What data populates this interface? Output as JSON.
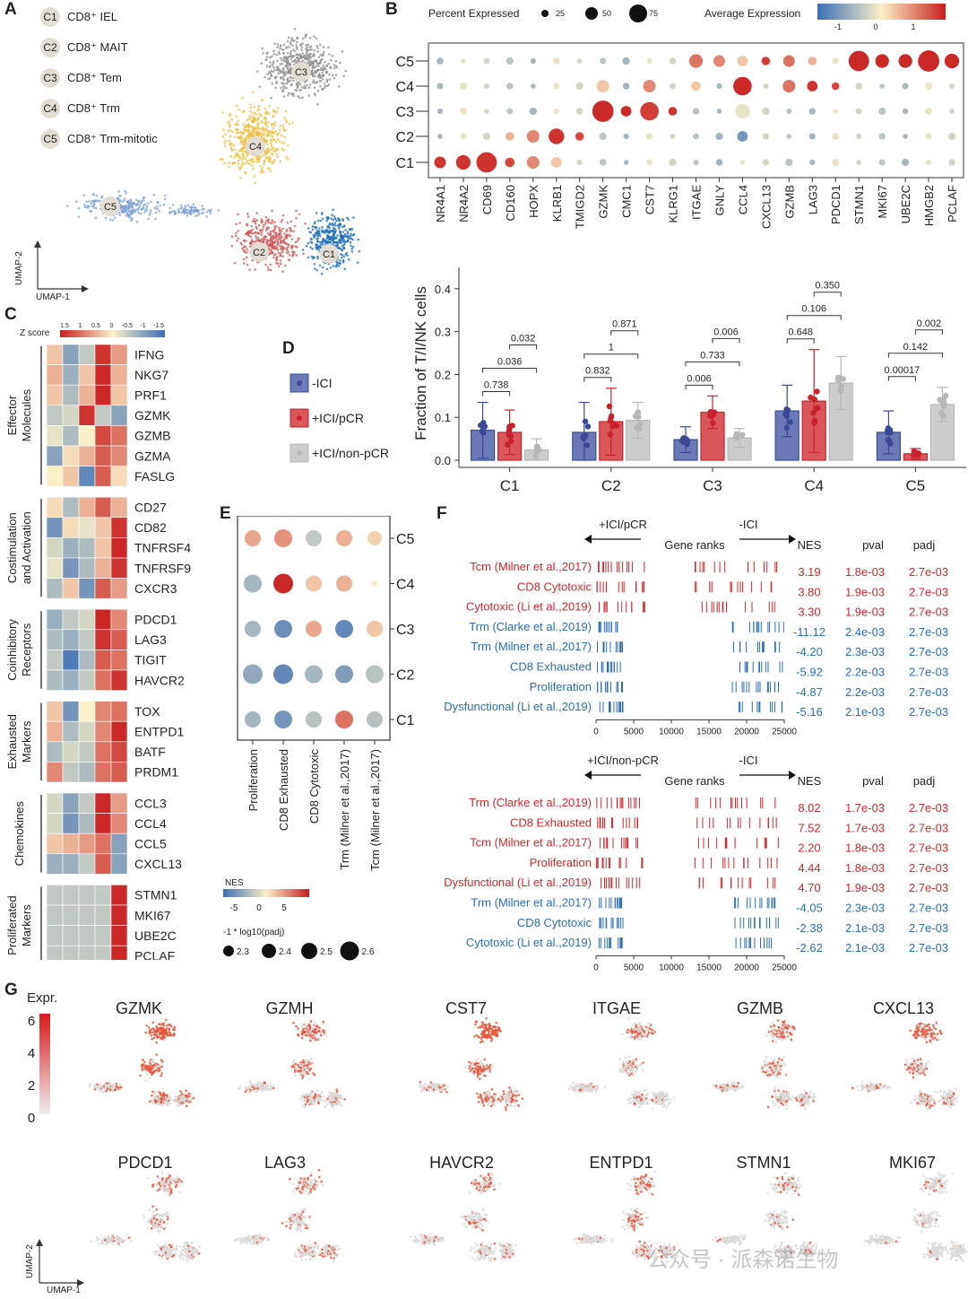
{
  "panels": {
    "A": "A",
    "B": "B",
    "C": "C",
    "D": "D",
    "E": "E",
    "F": "F",
    "G": "G"
  },
  "colors": {
    "ici_neg": "#3b4a96",
    "ici_pcr": "#c8232c",
    "ici_nonpcr": "#b7b7b7",
    "c1": "#1f6eb4",
    "c2": "#cc5a5a",
    "c3": "#8d8d8d",
    "c4": "#f0bd3e",
    "c5": "#7ea2d6"
  },
  "umap": {
    "clusters": [
      {
        "id": "C1",
        "name": "CD8⁺ IEL"
      },
      {
        "id": "C2",
        "name": "CD8⁺ MAIT"
      },
      {
        "id": "C3",
        "name": "CD8⁺ Tem"
      },
      {
        "id": "C4",
        "name": "CD8⁺ Trm"
      },
      {
        "id": "C5",
        "name": "CD8⁺ Trm-mitotic"
      }
    ],
    "axis_x": "UMAP-1",
    "axis_y": "UMAP-2"
  },
  "dotplot": {
    "legend_size_title": "Percent Expressed",
    "legend_size_ticks": [
      "25",
      "50",
      "75"
    ],
    "legend_color_title": "Average Expression",
    "legend_color_ticks": [
      "-1",
      "0",
      "1"
    ],
    "rows": [
      "C5",
      "C4",
      "C3",
      "C2",
      "C1"
    ],
    "genes": [
      "NR4A1",
      "NR4A2",
      "CD69",
      "CD160",
      "HOPX",
      "KLRB1",
      "TMIGD2",
      "GZMK",
      "CMC1",
      "CST7",
      "KLRG1",
      "ITGAE",
      "GNLY",
      "CCL4",
      "CXCL13",
      "GZMB",
      "LAG3",
      "PDCD1",
      "STMN1",
      "MKI67",
      "UBE2C",
      "HMGB2",
      "PCLAF"
    ]
  },
  "heatmap": {
    "zscore_title": "Z score",
    "zscore_ticks": [
      "1.5",
      "1",
      "0.5",
      "0",
      "-0.5",
      "-1",
      "-1.5"
    ],
    "columns": [
      "C1",
      "C2",
      "C3",
      "C4",
      "C5"
    ],
    "groups": [
      {
        "name": "Effector\nMolecules",
        "genes": [
          "IFNG",
          "NKG7",
          "PRF1",
          "GZMK",
          "GZMB",
          "GZMA",
          "FASLG"
        ]
      },
      {
        "name": "Costimulation\nand Activation",
        "genes": [
          "CD27",
          "CD82",
          "TNFRSF4",
          "TNFRSF9",
          "CXCR3"
        ]
      },
      {
        "name": "Coinhibitory\nReceptors",
        "genes": [
          "PDCD1",
          "LAG3",
          "TIGIT",
          "HAVCR2"
        ]
      },
      {
        "name": "Exhausted\nMarkers",
        "genes": [
          "TOX",
          "ENTPD1",
          "BATF",
          "PRDM1"
        ]
      },
      {
        "name": "Chemokines",
        "genes": [
          "CCL3",
          "CCL4",
          "CCL5",
          "CXCL13"
        ]
      },
      {
        "name": "Proliferated\nMarkers",
        "genes": [
          "STMN1",
          "MKI67",
          "UBE2C",
          "PCLAF"
        ]
      }
    ]
  },
  "legend_d": {
    "items": [
      "-ICI",
      "+ICI/pCR",
      "+ICI/non-pCR"
    ]
  },
  "chart_data": [
    {
      "type": "bar",
      "ylabel": "Fraction of T/I/NK cells",
      "ylim": [
        0,
        0.45
      ],
      "yticks": [
        "0.0",
        "0.1",
        "0.2",
        "0.3",
        "0.4"
      ],
      "categories": [
        "C1",
        "C2",
        "C3",
        "C4",
        "C5"
      ],
      "series": [
        {
          "name": "-ICI",
          "values": [
            0.07,
            0.065,
            0.048,
            0.115,
            0.065
          ],
          "err": [
            0.065,
            0.07,
            0.03,
            0.06,
            0.05
          ]
        },
        {
          "name": "+ICI/pCR",
          "values": [
            0.065,
            0.09,
            0.112,
            0.138,
            0.015
          ],
          "err": [
            0.052,
            0.078,
            0.038,
            0.12,
            0.012
          ]
        },
        {
          "name": "+ICI/non-pCR",
          "values": [
            0.024,
            0.093,
            0.052,
            0.18,
            0.13
          ],
          "err": [
            0.026,
            0.042,
            0.022,
            0.062,
            0.04
          ]
        }
      ],
      "pvalues": [
        {
          "cluster": "C1",
          "pairs": [
            [
              "1-2",
              "0.738"
            ],
            [
              "1-3",
              "0.036"
            ],
            [
              "2-3",
              "0.032"
            ]
          ]
        },
        {
          "cluster": "C2",
          "pairs": [
            [
              "1-2",
              "0.832"
            ],
            [
              "1-3",
              "1"
            ],
            [
              "2-3",
              "0.871"
            ]
          ]
        },
        {
          "cluster": "C3",
          "pairs": [
            [
              "1-2",
              "0.006"
            ],
            [
              "1-3",
              "0.733"
            ],
            [
              "2-3",
              "0.006"
            ]
          ]
        },
        {
          "cluster": "C4",
          "pairs": [
            [
              "1-2",
              "0.648"
            ],
            [
              "1-3",
              "0.106"
            ],
            [
              "2-3",
              "0.350"
            ]
          ]
        },
        {
          "cluster": "C5",
          "pairs": [
            [
              "1-2",
              "0.00017"
            ],
            [
              "1-3",
              "0.142"
            ],
            [
              "2-3",
              "0.002"
            ]
          ]
        }
      ]
    }
  ],
  "panel_e": {
    "rows": [
      "C5",
      "C4",
      "C3",
      "C2",
      "C1"
    ],
    "columns": [
      "Proliferation",
      "CD8 Exhausted",
      "CD8 Cytotoxic",
      "Trm (Milner et al.,2017)",
      "Tcm (Milner et al.,2017)"
    ],
    "nes_title": "NES",
    "nes_ticks": [
      "-5",
      "0",
      "5"
    ],
    "size_title": "-1 * log10(padj)",
    "size_ticks": [
      "2.3",
      "2.4",
      "2.5",
      "2.6"
    ]
  },
  "gsea": [
    {
      "left": "+ICI/pCR",
      "right": "-ICI",
      "axis_title": "Gene ranks",
      "headers": [
        "NES",
        "pval",
        "padj"
      ],
      "xticks": [
        "0",
        "5000",
        "10000",
        "15000",
        "20000",
        "25000"
      ],
      "rows": [
        {
          "name": "Tcm (Milner et al.,2017)",
          "nes": "3.19",
          "pval": "1.8e-03",
          "padj": "2.7e-03",
          "up": true
        },
        {
          "name": "CD8 Cytotoxic",
          "nes": "3.80",
          "pval": "1.9e-03",
          "padj": "2.7e-03",
          "up": true
        },
        {
          "name": "Cytotoxic (Li et al.,2019)",
          "nes": "3.30",
          "pval": "1.9e-03",
          "padj": "2.7e-03",
          "up": true
        },
        {
          "name": "Trm (Clarke et al.,2019)",
          "nes": "-11.12",
          "pval": "2.4e-03",
          "padj": "2.7e-03",
          "up": false
        },
        {
          "name": "Trm (Milner et al.,2017)",
          "nes": "-4.20",
          "pval": "2.3e-03",
          "padj": "2.7e-03",
          "up": false
        },
        {
          "name": "CD8 Exhausted",
          "nes": "-5.92",
          "pval": "2.2e-03",
          "padj": "2.7e-03",
          "up": false
        },
        {
          "name": "Proliferation",
          "nes": "-4.87",
          "pval": "2.2e-03",
          "padj": "2.7e-03",
          "up": false
        },
        {
          "name": "Dysfunctional (Li et al.,2019)",
          "nes": "-5.16",
          "pval": "2.1e-03",
          "padj": "2.7e-03",
          "up": false
        }
      ]
    },
    {
      "left": "+ICI/non-pCR",
      "right": "-ICI",
      "axis_title": "Gene ranks",
      "headers": [
        "NES",
        "pval",
        "padj"
      ],
      "xticks": [
        "0",
        "5000",
        "10000",
        "15000",
        "20000",
        "25000"
      ],
      "rows": [
        {
          "name": "Trm (Clarke et al.,2019)",
          "nes": "8.02",
          "pval": "1.7e-03",
          "padj": "2.7e-03",
          "up": true
        },
        {
          "name": "CD8 Exhausted",
          "nes": "7.52",
          "pval": "1.7e-03",
          "padj": "2.7e-03",
          "up": true
        },
        {
          "name": "Tcm (Milner et al.,2017)",
          "nes": "2.20",
          "pval": "1.8e-03",
          "padj": "2.7e-03",
          "up": true
        },
        {
          "name": "Proliferation",
          "nes": "4.44",
          "pval": "1.8e-03",
          "padj": "2.7e-03",
          "up": true
        },
        {
          "name": "Dysfunctional (Li et al.,2019)",
          "nes": "4.70",
          "pval": "1.9e-03",
          "padj": "2.7e-03",
          "up": true
        },
        {
          "name": "Trm (Milner et al.,2017)",
          "nes": "-4.05",
          "pval": "2.3e-03",
          "padj": "2.7e-03",
          "up": false
        },
        {
          "name": "CD8 Cytotoxic",
          "nes": "-2.38",
          "pval": "2.1e-03",
          "padj": "2.7e-03",
          "up": false
        },
        {
          "name": "Cytotoxic (Li et al.,2019)",
          "nes": "-2.62",
          "pval": "2.1e-03",
          "padj": "2.7e-03",
          "up": false
        }
      ]
    }
  ],
  "feature_plots": {
    "legend_title": "Expr.",
    "legend_ticks": [
      "6",
      "4",
      "2",
      "0"
    ],
    "row1": [
      "GZMK",
      "GZMH",
      "CST7",
      "ITGAE",
      "GZMB",
      "CXCL13"
    ],
    "row2": [
      "PDCD1",
      "LAG3",
      "HAVCR2",
      "ENTPD1",
      "STMN1",
      "MKI67"
    ],
    "axis_x": "UMAP-1",
    "axis_y": "UMAP-2"
  },
  "watermark": "公众号 · 派森诺生物"
}
